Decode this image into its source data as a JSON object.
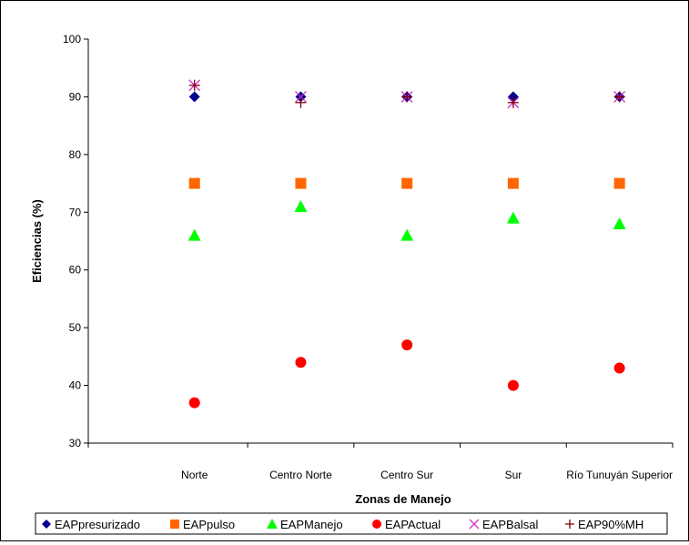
{
  "chart_data": {
    "type": "scatter",
    "title": "",
    "xlabel": "Zonas de Manejo",
    "ylabel": "Eficiencias (%)",
    "ylim": [
      30,
      100
    ],
    "yticks": [
      "30",
      "40",
      "50",
      "60",
      "70",
      "80",
      "90",
      "100"
    ],
    "categories": [
      "Norte",
      "Centro Norte",
      "Centro Sur",
      "Sur",
      "Río Tunuyán Superior"
    ],
    "grid": false,
    "legend_position": "bottom",
    "series": [
      {
        "name": "EAPpresurizado",
        "marker": "diamond",
        "color": "#00008B",
        "values": [
          90,
          90,
          90,
          90,
          90
        ]
      },
      {
        "name": "EAPpulso",
        "marker": "square",
        "color": "#FF6600",
        "values": [
          75,
          75,
          75,
          75,
          75
        ]
      },
      {
        "name": "EAPManejo",
        "marker": "triangle",
        "color": "#00FF00",
        "values": [
          66,
          71,
          66,
          69,
          68
        ]
      },
      {
        "name": "EAPActual",
        "marker": "circle",
        "color": "#FF0000",
        "values": [
          37,
          44,
          47,
          40,
          43
        ]
      },
      {
        "name": "EAPBalsal",
        "marker": "x",
        "color": "#CC33CC",
        "values": [
          92,
          90,
          90,
          89,
          90
        ]
      },
      {
        "name": "EAP90%MH",
        "marker": "plus",
        "color": "#800000",
        "values": [
          92,
          89,
          90,
          89,
          90
        ]
      }
    ]
  }
}
